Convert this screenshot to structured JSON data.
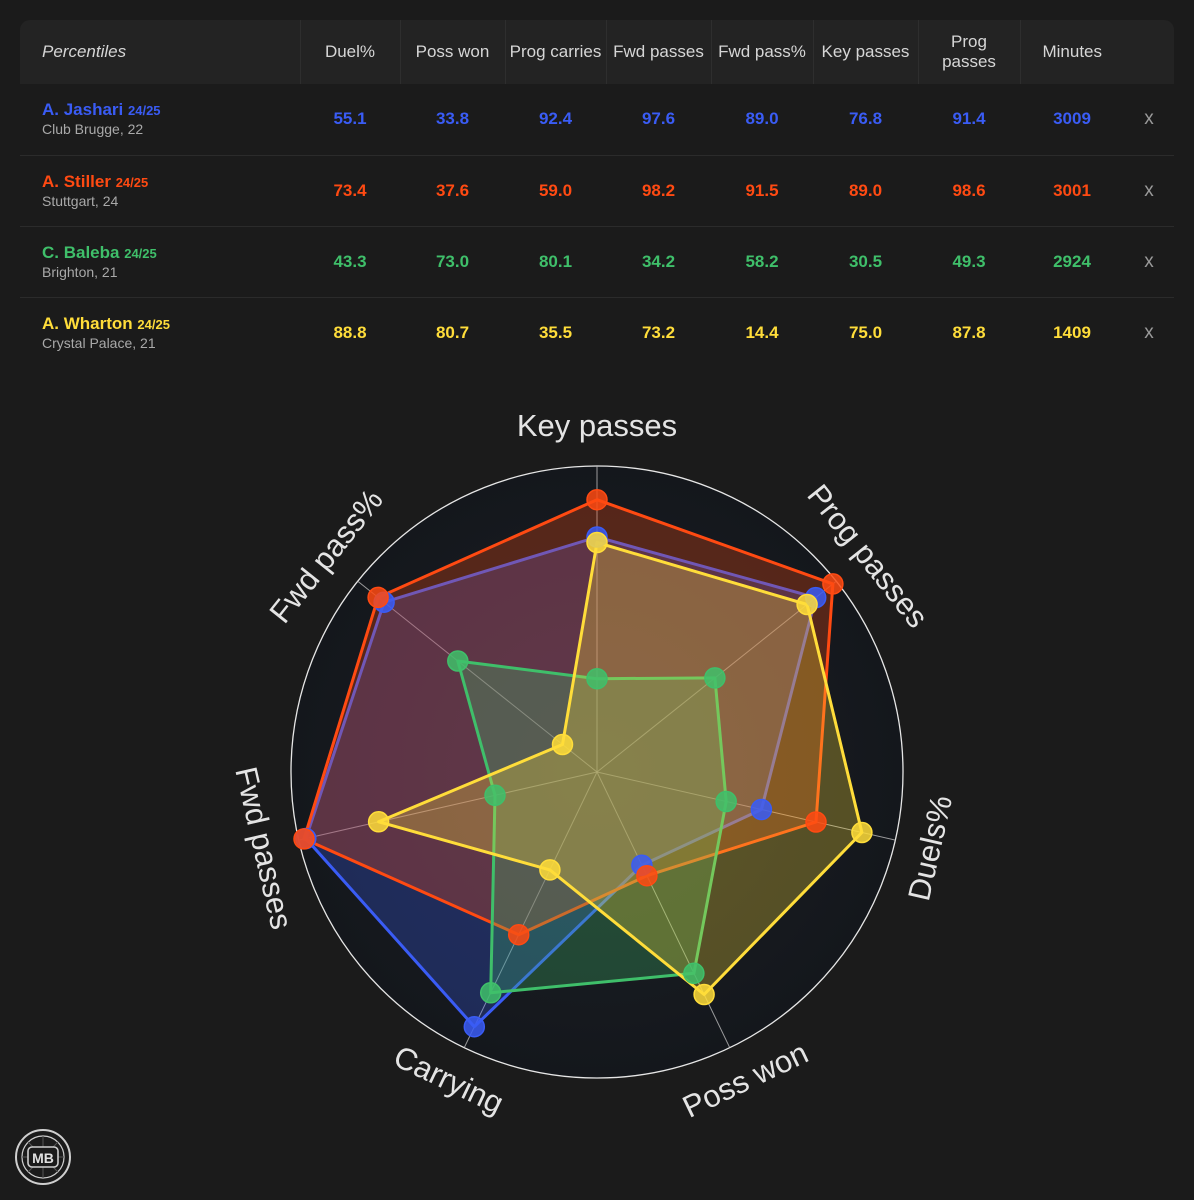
{
  "table": {
    "corner_label": "Percentiles",
    "columns": [
      {
        "key": "duel",
        "label": "Duel%"
      },
      {
        "key": "poss_won",
        "label": "Poss won"
      },
      {
        "key": "prog_carries",
        "label": "Prog carries"
      },
      {
        "key": "fwd_passes",
        "label": "Fwd passes"
      },
      {
        "key": "fwd_pass_pct",
        "label": "Fwd pass%"
      },
      {
        "key": "key_passes",
        "label": "Key passes"
      },
      {
        "key": "prog_passes",
        "label": "Prog passes"
      },
      {
        "key": "minutes",
        "label": "Minutes"
      }
    ],
    "remove_label": "x"
  },
  "players": [
    {
      "name": "A. Jashari",
      "season": "24/25",
      "club": "Club Brugge, 22",
      "color": "#3a5cf5",
      "values": [
        "55.1",
        "33.8",
        "92.4",
        "97.6",
        "89.0",
        "76.8",
        "91.4",
        "3009"
      ]
    },
    {
      "name": "A. Stiller",
      "season": "24/25",
      "club": "Stuttgart, 24",
      "color": "#ff4a12",
      "values": [
        "73.4",
        "37.6",
        "59.0",
        "98.2",
        "91.5",
        "89.0",
        "98.6",
        "3001"
      ]
    },
    {
      "name": "C. Baleba",
      "season": "24/25",
      "club": "Brighton, 21",
      "color": "#3fbf6a",
      "values": [
        "43.3",
        "73.0",
        "80.1",
        "34.2",
        "58.2",
        "30.5",
        "49.3",
        "2924"
      ]
    },
    {
      "name": "A. Wharton",
      "season": "24/25",
      "club": "Crystal Palace, 21",
      "color": "#ffdd3a",
      "values": [
        "88.8",
        "80.7",
        "35.5",
        "73.2",
        "14.4",
        "75.0",
        "87.8",
        "1409"
      ]
    }
  ],
  "chart_data": {
    "type": "radar",
    "axes": [
      "Key passes",
      "Prog passes",
      "Duels%",
      "Poss won",
      "Carrying",
      "Fwd passes",
      "Fwd pass%"
    ],
    "range": [
      0,
      100
    ],
    "series": [
      {
        "name": "A. Jashari",
        "color": "#3a5cf5",
        "values": [
          76.8,
          91.4,
          55.1,
          33.8,
          92.4,
          97.6,
          89.0
        ]
      },
      {
        "name": "A. Stiller",
        "color": "#ff4a12",
        "values": [
          89.0,
          98.6,
          73.4,
          37.6,
          59.0,
          98.2,
          91.5
        ]
      },
      {
        "name": "C. Baleba",
        "color": "#3fbf6a",
        "values": [
          30.5,
          49.3,
          43.3,
          73.0,
          80.1,
          34.2,
          58.2
        ]
      },
      {
        "name": "A. Wharton",
        "color": "#ffdd3a",
        "values": [
          75.0,
          87.8,
          88.8,
          80.7,
          35.5,
          73.2,
          14.4
        ]
      }
    ]
  },
  "logo": {
    "text": "MB"
  }
}
